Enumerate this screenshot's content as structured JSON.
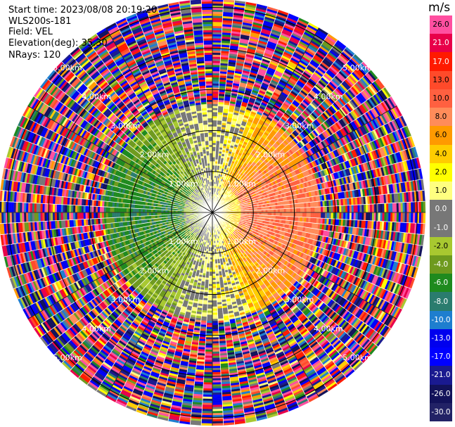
{
  "header": {
    "start_time": "Start time: 2023/08/08 20:19:20",
    "instrument": "WLS200s-181",
    "field": "Field: VEL",
    "elevation": "Elevation(deg): 35.30",
    "nrays": "NRays: 120"
  },
  "chart_data": {
    "type": "heatmap",
    "projection": "polar-ppi",
    "title": "",
    "field": "VEL",
    "unit": "m/s",
    "n_rays": 120,
    "range_rings_km": [
      1.0,
      2.0,
      3.0,
      4.0,
      5.0
    ],
    "ring_labels": [
      "1.00km",
      "2.00km",
      "3.00km",
      "4.00km",
      "5.00km"
    ],
    "spoke_angles_deg": [
      0,
      30,
      60,
      90,
      120,
      150,
      180,
      210,
      240,
      270,
      300,
      330
    ],
    "max_range_km": 5.2,
    "pattern": {
      "near_core_radius_km": 0.7,
      "approaching_sector_mean_ms": -7.0,
      "receding_sector_mean_ms": 8.0,
      "noise_beyond_km": 2.6
    },
    "colorbar": {
      "ticks": [
        26.0,
        21.0,
        17.0,
        13.0,
        10.0,
        8.0,
        6.0,
        4.0,
        2.0,
        1.0,
        0.0,
        -1.0,
        -2.0,
        -4.0,
        -6.0,
        -8.0,
        -10.0,
        -13.0,
        -17.0,
        -21.0,
        -26.0,
        -30.0
      ],
      "tick_labels": [
        "26.0",
        "21.0",
        "17.0",
        "13.0",
        "10.0",
        "8.0",
        "6.0",
        "4.0",
        "2.0",
        "1.0",
        "0.0",
        "-1.0",
        "-2.0",
        "-4.0",
        "-6.0",
        "-8.0",
        "-10.0",
        "-13.0",
        "-17.0",
        "-21.0",
        "-26.0",
        "-30.0"
      ],
      "colors": [
        "#ff4fa0",
        "#e8004a",
        "#ff1a00",
        "#ff4a2a",
        "#ff6040",
        "#ff8c5a",
        "#ff9a00",
        "#ffcc00",
        "#ffff00",
        "#ffff80",
        "#777777",
        "#777777",
        "#a8c830",
        "#6e9a1e",
        "#1e8a1e",
        "#2a7c6e",
        "#1e7ecf",
        "#0000ee",
        "#0000ff",
        "#1a1a90",
        "#12125a",
        "#222266"
      ]
    }
  }
}
